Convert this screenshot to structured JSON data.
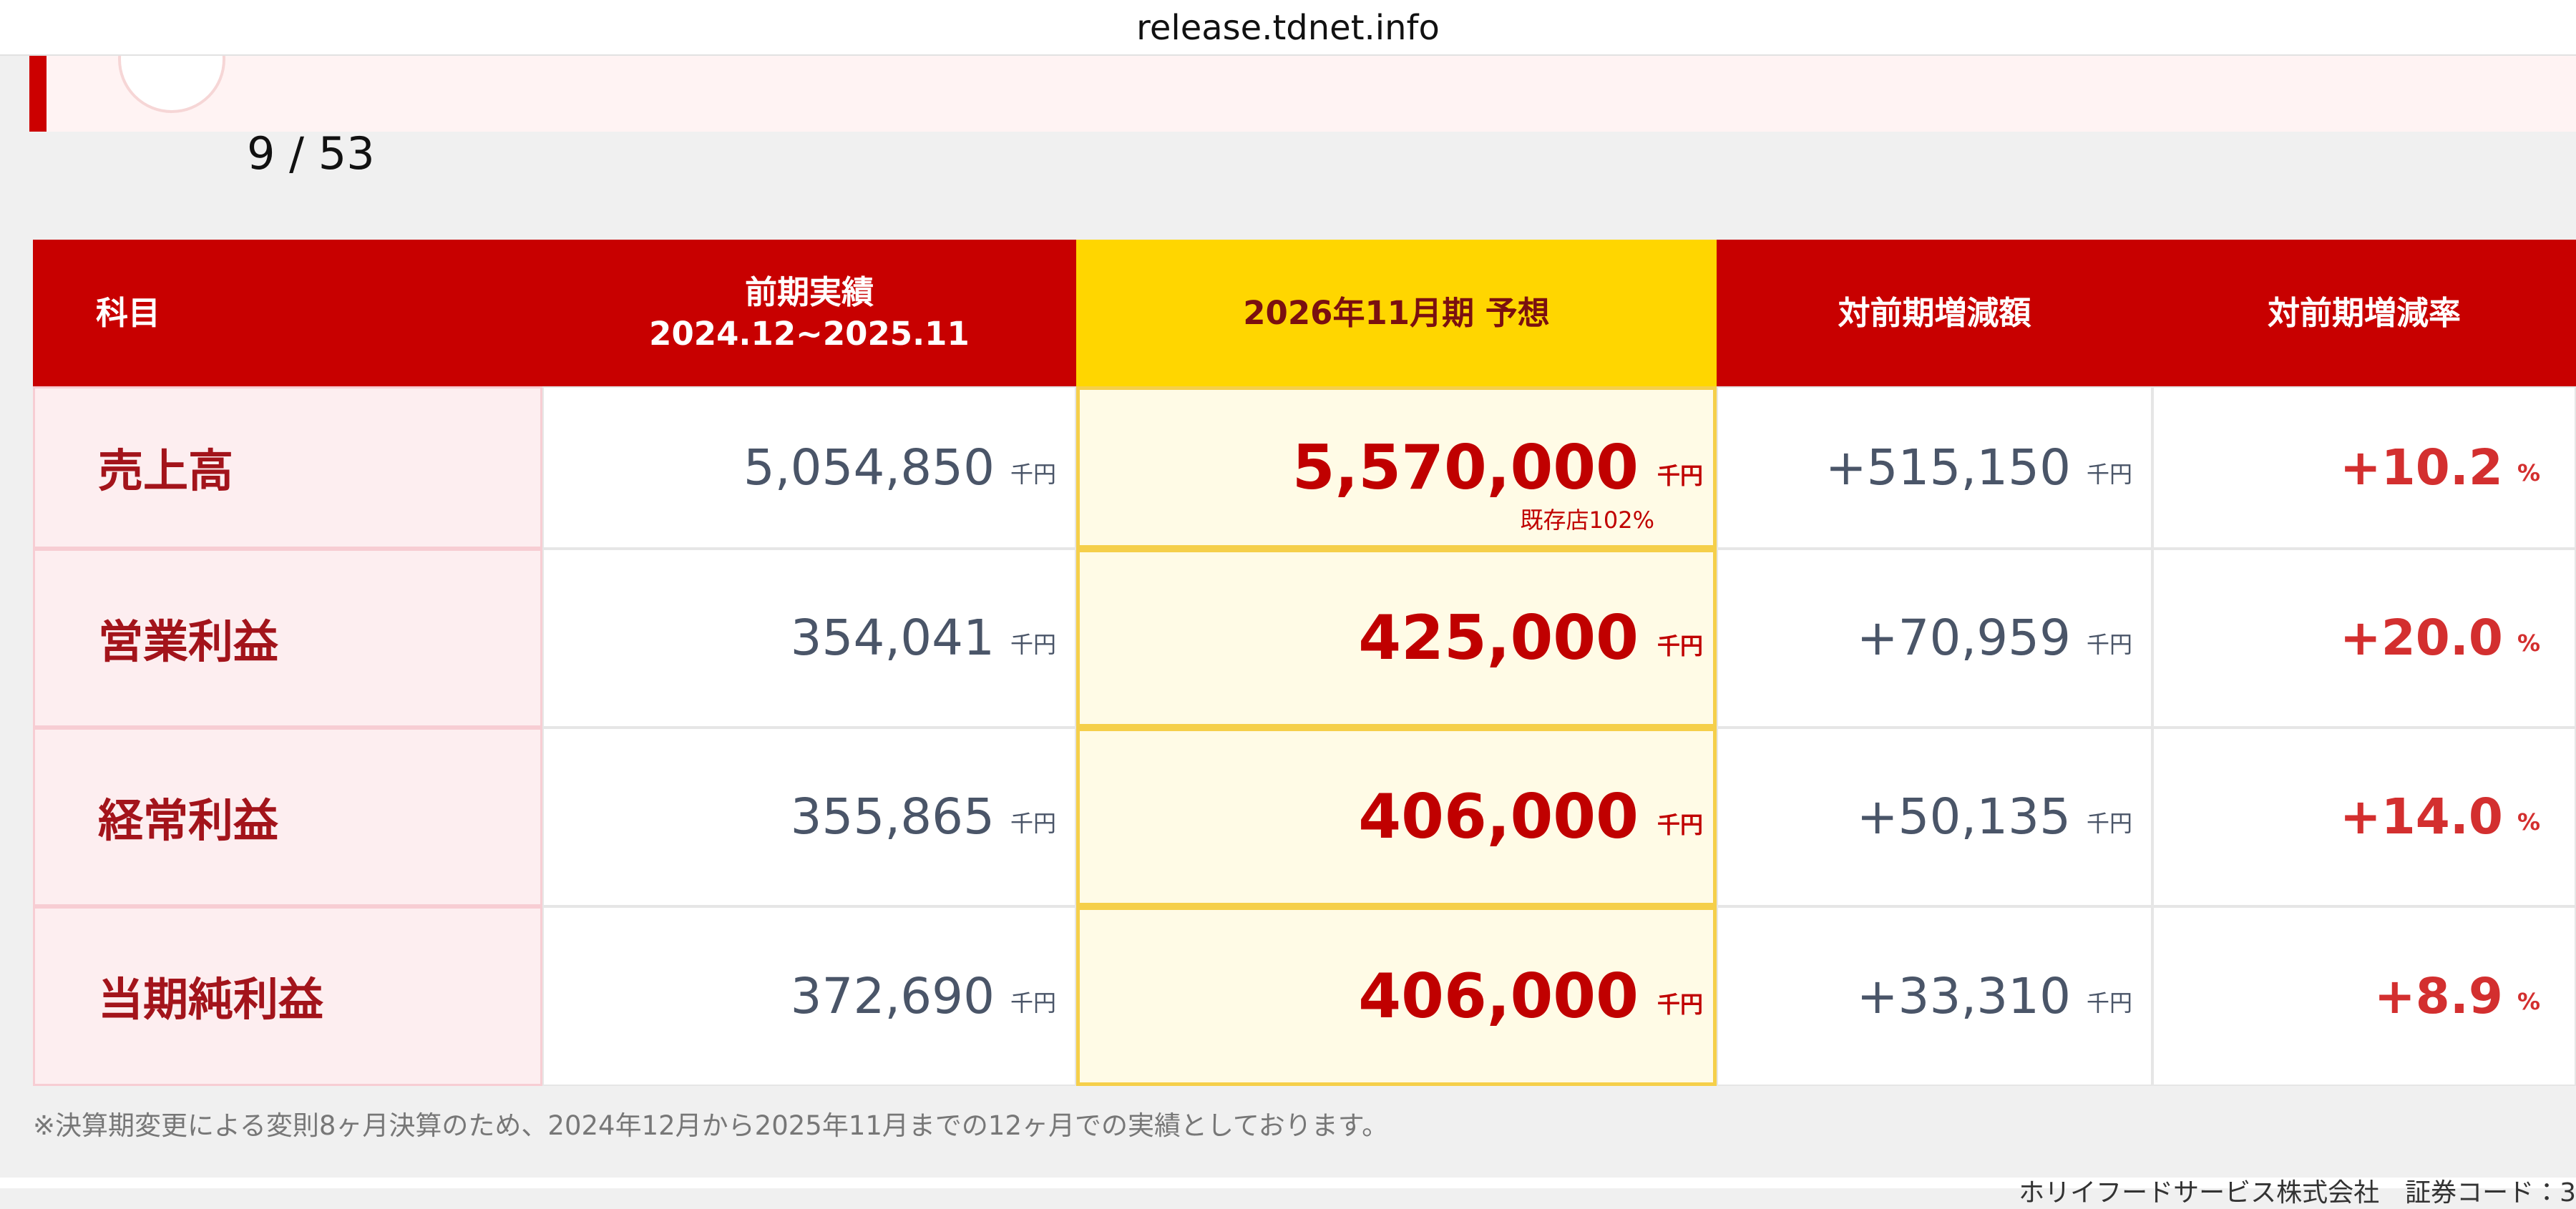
{
  "browser": {
    "url": "release.tdnet.info"
  },
  "page_indicator": "9 / 53",
  "table": {
    "headers": [
      [
        "科目"
      ],
      [
        "前期実績",
        "2024.12~2025.11"
      ],
      [
        "2026年11月期 予想"
      ],
      [
        "対前期増減額"
      ],
      [
        "対前期増減率"
      ]
    ],
    "rows": [
      {
        "item": "売上高",
        "previous": {
          "value": "5,054,850",
          "unit": "千円"
        },
        "forecast": {
          "value": "5,570,000",
          "unit": "千円",
          "note": "既存店102%"
        },
        "change": {
          "value": "+515,150",
          "unit": "千円"
        },
        "rate": {
          "value": "+10.2",
          "unit": "%"
        }
      },
      {
        "item": "営業利益",
        "previous": {
          "value": "354,041",
          "unit": "千円"
        },
        "forecast": {
          "value": "425,000",
          "unit": "千円"
        },
        "change": {
          "value": "+70,959",
          "unit": "千円"
        },
        "rate": {
          "value": "+20.0",
          "unit": "%"
        }
      },
      {
        "item": "経常利益",
        "previous": {
          "value": "355,865",
          "unit": "千円"
        },
        "forecast": {
          "value": "406,000",
          "unit": "千円"
        },
        "change": {
          "value": "+50,135",
          "unit": "千円"
        },
        "rate": {
          "value": "+14.0",
          "unit": "%"
        }
      },
      {
        "item": "当期純利益",
        "previous": {
          "value": "372,690",
          "unit": "千円"
        },
        "forecast": {
          "value": "406,000",
          "unit": "千円"
        },
        "change": {
          "value": "+33,310",
          "unit": "千円"
        },
        "rate": {
          "value": "+8.9",
          "unit": "%"
        }
      }
    ]
  },
  "footnote": "※決算期変更による変則8ヶ月決算のため、2024年12月から2025年11月までの12ヶ月での実績としております。",
  "footer_text": "ホリイフードサービス株式会社　証券コード：3"
}
